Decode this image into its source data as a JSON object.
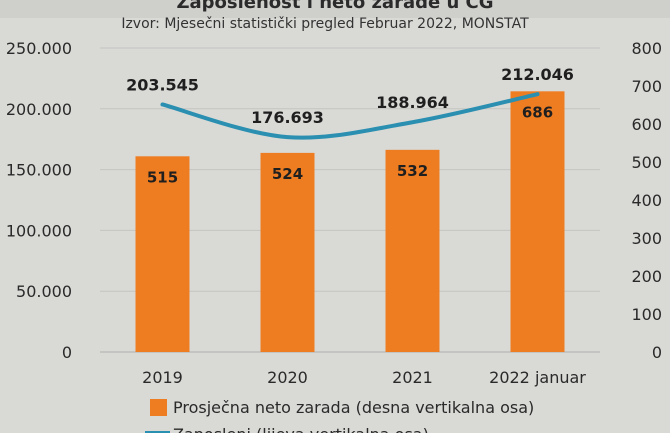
{
  "chart_data": {
    "type": "bar",
    "title": "Zaposlenost i neto zarade u CG",
    "subtitle": "Izvor: Mjesečni statistički pregled Februar 2022, MONSTAT",
    "categories": [
      "2019",
      "2020",
      "2021",
      "2022 januar"
    ],
    "series": [
      {
        "name": "Prosječna neto zarada (desna vertikalna osa)",
        "type": "bar",
        "axis": "right",
        "values": [
          515,
          524,
          532,
          686
        ],
        "color": "#ee7d22"
      },
      {
        "name": "Zaposleni (lijeva vertikalna osa)",
        "type": "line",
        "axis": "left",
        "values": [
          203545,
          176693,
          188964,
          212046
        ],
        "value_labels": [
          "203.545",
          "176.693",
          "188.964",
          "212.046"
        ],
        "color": "#2a8fb0"
      }
    ],
    "y_left": {
      "range": [
        0,
        250000
      ],
      "ticks": [
        "0",
        "50.000",
        "100.000",
        "150.000",
        "200.000",
        "250.000"
      ]
    },
    "y_right": {
      "range": [
        0,
        800
      ],
      "ticks": [
        "0",
        "100",
        "200",
        "300",
        "400",
        "500",
        "600",
        "700",
        "800"
      ]
    },
    "grid": true,
    "legend_position": "bottom"
  }
}
